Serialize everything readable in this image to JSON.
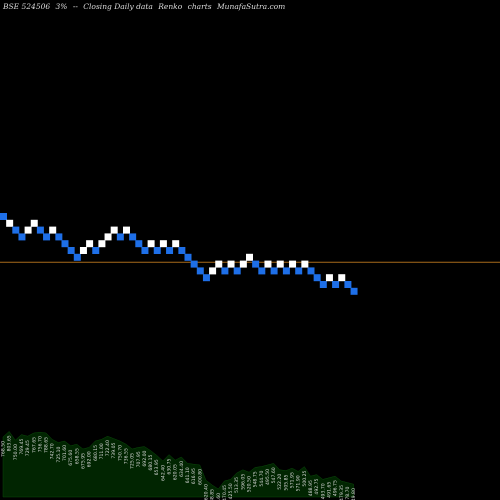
{
  "header": {
    "symbol": "BSE 524506",
    "pct": "3%",
    "arrow": "--",
    "desc": "Closing Daily data",
    "chart_kind": "Renko",
    "word": "charts",
    "site": "MunafaSutra.com"
  },
  "colors": {
    "background": "#000000",
    "up": "#ffffff",
    "down": "#1e6fe8",
    "ref_line": "#a86a1a",
    "volume_fill": "#012501",
    "text": "#dddddd"
  },
  "chart_data": [
    {
      "type": "renko",
      "title": "BSE 524506 3% -- Closing Daily data Renko charts MunafaSutra.com",
      "bricks": [
        {
          "dir": "down",
          "level": 43
        },
        {
          "dir": "up",
          "level": 42
        },
        {
          "dir": "down",
          "level": 41
        },
        {
          "dir": "down",
          "level": 40
        },
        {
          "dir": "up",
          "level": 41
        },
        {
          "dir": "up",
          "level": 42
        },
        {
          "dir": "down",
          "level": 41
        },
        {
          "dir": "down",
          "level": 40
        },
        {
          "dir": "up",
          "level": 41
        },
        {
          "dir": "down",
          "level": 40
        },
        {
          "dir": "down",
          "level": 39
        },
        {
          "dir": "down",
          "level": 38
        },
        {
          "dir": "down",
          "level": 37
        },
        {
          "dir": "up",
          "level": 38
        },
        {
          "dir": "up",
          "level": 39
        },
        {
          "dir": "down",
          "level": 38
        },
        {
          "dir": "up",
          "level": 39
        },
        {
          "dir": "up",
          "level": 40
        },
        {
          "dir": "up",
          "level": 41
        },
        {
          "dir": "down",
          "level": 40
        },
        {
          "dir": "up",
          "level": 41
        },
        {
          "dir": "down",
          "level": 40
        },
        {
          "dir": "down",
          "level": 39
        },
        {
          "dir": "down",
          "level": 38
        },
        {
          "dir": "up",
          "level": 39
        },
        {
          "dir": "down",
          "level": 38
        },
        {
          "dir": "up",
          "level": 39
        },
        {
          "dir": "down",
          "level": 38
        },
        {
          "dir": "up",
          "level": 39
        },
        {
          "dir": "down",
          "level": 38
        },
        {
          "dir": "down",
          "level": 37
        },
        {
          "dir": "down",
          "level": 36
        },
        {
          "dir": "down",
          "level": 35
        },
        {
          "dir": "down",
          "level": 34
        },
        {
          "dir": "up",
          "level": 35
        },
        {
          "dir": "up",
          "level": 36
        },
        {
          "dir": "down",
          "level": 35
        },
        {
          "dir": "up",
          "level": 36
        },
        {
          "dir": "down",
          "level": 35
        },
        {
          "dir": "up",
          "level": 36
        },
        {
          "dir": "up",
          "level": 37
        },
        {
          "dir": "down",
          "level": 36
        },
        {
          "dir": "down",
          "level": 35
        },
        {
          "dir": "up",
          "level": 36
        },
        {
          "dir": "down",
          "level": 35
        },
        {
          "dir": "up",
          "level": 36
        },
        {
          "dir": "down",
          "level": 35
        },
        {
          "dir": "up",
          "level": 36
        },
        {
          "dir": "down",
          "level": 35
        },
        {
          "dir": "up",
          "level": 36
        },
        {
          "dir": "down",
          "level": 35
        },
        {
          "dir": "down",
          "level": 34
        },
        {
          "dir": "down",
          "level": 33
        },
        {
          "dir": "up",
          "level": 34
        },
        {
          "dir": "down",
          "level": 33
        },
        {
          "dir": "up",
          "level": 34
        },
        {
          "dir": "down",
          "level": 33
        },
        {
          "dir": "down",
          "level": 32
        }
      ],
      "reference_level": 36.5,
      "level_range": [
        32,
        43
      ]
    },
    {
      "type": "area",
      "volume_labels": [
        "768.50",
        "803.65",
        "750.00",
        "769.45",
        "729.45",
        "767.65",
        "756.70",
        "788.65",
        "742.70",
        "725.10",
        "701.60",
        "675.60",
        "658.55",
        "675.95",
        "692.00",
        "680.15",
        "711.00",
        "722.40",
        "739.05",
        "750.70",
        "736.55",
        "725.05",
        "707.95",
        "692.00",
        "680.15",
        "653.95",
        "642.40",
        "630.75",
        "620.05",
        "634.40",
        "641.10",
        "616.95",
        "600.80",
        "620.40",
        "588.85",
        "548.60",
        "470.45",
        "425.50",
        "513.35",
        "596.05",
        "520.50",
        "548.75",
        "544.70",
        "495.50",
        "547.60",
        "522.20",
        "505.85",
        "571.95",
        "571.90",
        "500.25",
        "488.95",
        "492.75",
        "493.70",
        "491.65",
        "496.75",
        "479.35",
        "478.70",
        "449.80"
      ],
      "area_values": [
        75,
        82,
        71,
        78,
        76,
        80,
        81,
        80,
        72,
        68,
        70,
        64,
        66,
        60,
        62,
        70,
        72,
        76,
        73,
        70,
        66,
        60,
        62,
        63,
        58,
        52,
        45,
        53,
        46,
        50,
        42,
        41,
        40,
        21,
        15,
        10,
        20,
        22,
        30,
        34,
        31,
        37,
        38,
        40,
        42,
        34,
        33,
        36,
        32,
        38,
        26,
        28,
        22,
        24,
        26,
        20,
        18,
        16
      ],
      "area_max": 100
    }
  ]
}
